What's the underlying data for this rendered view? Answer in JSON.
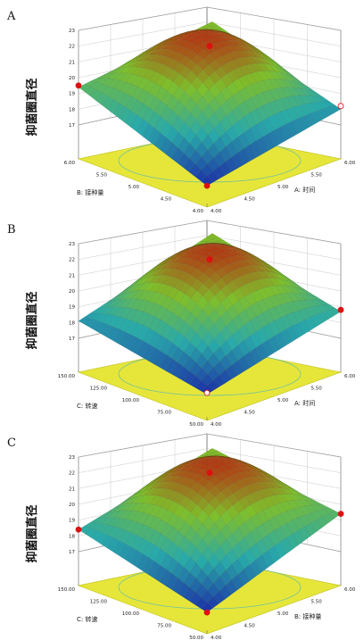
{
  "colors": {
    "floor": "#e6e63a",
    "floor_edge": "#c9c928",
    "contour": "#6fc0a0",
    "box": "#777777",
    "grid": "#bbbbbb",
    "marker": "#dd1111",
    "marker_open": "#ffffff",
    "surface_low": "#1b2fa8",
    "surface_mid": "#7fbf2a",
    "surface_high": "#b23a12"
  },
  "chart_data": [
    {
      "label": "A",
      "type": "surface3d",
      "zlabel": "抑菌圈直径",
      "z_ticks": [
        "17",
        "18",
        "19",
        "20",
        "21",
        "22",
        "23"
      ],
      "x_axis": {
        "label": "A: 时间",
        "ticks": [
          "4.00",
          "4.50",
          "5.00",
          "5.50",
          "6.00"
        ]
      },
      "y_axis": {
        "label": "B: 接种量",
        "ticks": [
          "4.00",
          "4.50",
          "5.00",
          "5.50",
          "6.00"
        ]
      },
      "surface": {
        "center": 22.0,
        "corner_left": 19.4,
        "corner_right": 18.0,
        "corner_back": 20.5,
        "corner_front": 16.2
      },
      "design_points": [
        {
          "x": 5.0,
          "y": 5.0,
          "z": 22.0
        },
        {
          "x": 4.0,
          "y": 6.0,
          "z": 19.5
        },
        {
          "x": 6.0,
          "y": 4.0,
          "z": 18.2,
          "open": true
        },
        {
          "x": 4.0,
          "y": 4.0,
          "z": 16.2
        }
      ]
    },
    {
      "label": "B",
      "type": "surface3d",
      "zlabel": "抑菌圈直径",
      "z_ticks": [
        "17",
        "18",
        "19",
        "20",
        "21",
        "22",
        "23"
      ],
      "x_axis": {
        "label": "A: 时间",
        "ticks": [
          "4.00",
          "4.50",
          "5.00",
          "5.50",
          "6.00"
        ]
      },
      "y_axis": {
        "label": "C: 转速",
        "ticks": [
          "50.00",
          "75.00",
          "100.00",
          "125.00",
          "150.00"
        ]
      },
      "surface": {
        "center": 22.0,
        "corner_left": 18.1,
        "corner_right": 18.7,
        "corner_back": 20.6,
        "corner_front": 16.5
      },
      "design_points": [
        {
          "x": 5.0,
          "y": 100.0,
          "z": 22.0
        },
        {
          "x": 6.0,
          "y": 50.0,
          "z": 18.8
        },
        {
          "x": 4.0,
          "y": 50.0,
          "z": 16.6,
          "open": true
        }
      ]
    },
    {
      "label": "C",
      "type": "surface3d",
      "zlabel": "抑菌圈直径",
      "z_ticks": [
        "17",
        "18",
        "19",
        "20",
        "21",
        "22",
        "23"
      ],
      "x_axis": {
        "label": "B: 接种量",
        "ticks": [
          "4.00",
          "4.50",
          "5.00",
          "5.50",
          "6.00"
        ]
      },
      "y_axis": {
        "label": "C: 转速",
        "ticks": [
          "50.00",
          "75.00",
          "100.00",
          "125.00",
          "150.00"
        ]
      },
      "surface": {
        "center": 22.0,
        "corner_left": 18.4,
        "corner_right": 19.4,
        "corner_back": 20.5,
        "corner_front": 16.2
      },
      "design_points": [
        {
          "x": 5.0,
          "y": 100.0,
          "z": 22.0
        },
        {
          "x": 6.0,
          "y": 50.0,
          "z": 19.4
        },
        {
          "x": 4.0,
          "y": 150.0,
          "z": 18.4
        },
        {
          "x": 4.0,
          "y": 50.0,
          "z": 16.2
        }
      ]
    }
  ]
}
